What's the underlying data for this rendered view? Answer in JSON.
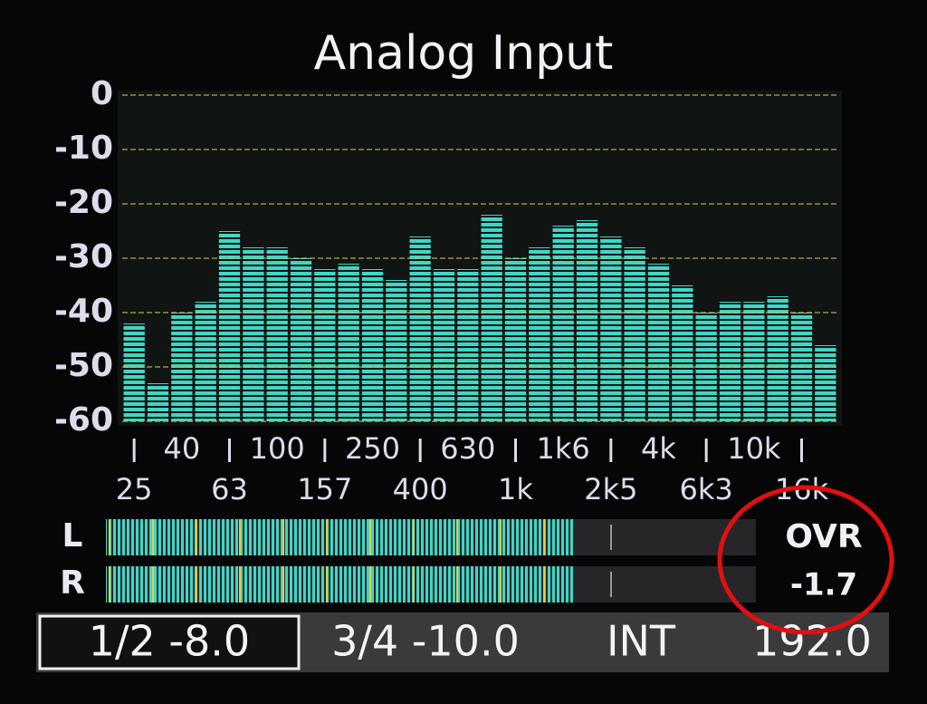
{
  "chart_data": {
    "type": "bar",
    "title": "Analog Input",
    "categories": [
      "25",
      null,
      "40",
      null,
      "63",
      null,
      "100",
      null,
      "157",
      null,
      "250",
      null,
      "400",
      null,
      "630",
      null,
      "1k",
      null,
      "1k6",
      null,
      "2k5",
      null,
      "4k",
      null,
      "6k3",
      null,
      "10k",
      null,
      "16k",
      null
    ],
    "values": [
      -42,
      -53,
      -40,
      -38,
      -25,
      -28,
      -28,
      -30,
      -32,
      -31,
      -32,
      -34,
      -26,
      -32,
      -32,
      -22,
      -30,
      -28,
      -24,
      -23,
      -26,
      -28,
      -31,
      -35,
      -40,
      -38,
      -38,
      -37,
      -40,
      -46
    ],
    "color": "#3fd6c6",
    "ylim": [
      -60,
      0
    ],
    "yticks": [
      0,
      -10,
      -20,
      -30,
      -40,
      -50,
      -60
    ],
    "grid": true
  },
  "meters": {
    "channels": [
      "L",
      "R"
    ],
    "values": [
      0.72,
      0.72
    ],
    "xlim": [
      0,
      1
    ]
  },
  "overload": {
    "label": "OVR",
    "value": "-1.7"
  },
  "status_bar": [
    "1/2 -8.0",
    "3/4 -10.0",
    "INT",
    "192.0"
  ]
}
